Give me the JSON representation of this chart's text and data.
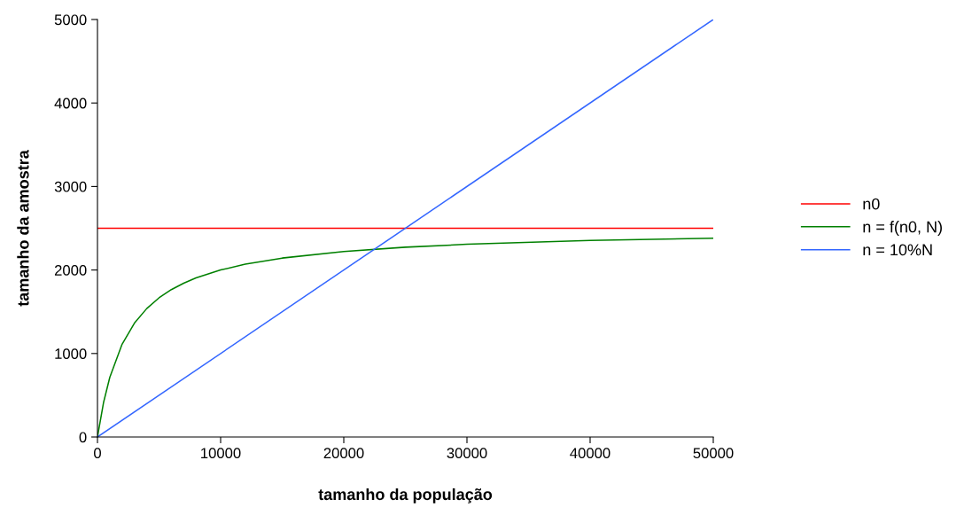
{
  "chart_data": {
    "type": "line",
    "xlabel": "tamanho da população",
    "ylabel": "tamanho da amostra",
    "xlim": [
      0,
      50000
    ],
    "ylim": [
      0,
      5000
    ],
    "xticks": [
      0,
      10000,
      20000,
      30000,
      40000,
      50000
    ],
    "yticks": [
      0,
      1000,
      2000,
      3000,
      4000,
      5000
    ],
    "grid": false,
    "legend": "right",
    "marker": "none",
    "line_style": "solid",
    "series": [
      {
        "name": "n0",
        "color": "#ff0000",
        "x": [
          0,
          50000
        ],
        "values": [
          2500,
          2500
        ]
      },
      {
        "name": "n = f(n0, N)",
        "color": "#008000",
        "x": [
          0,
          500,
          1000,
          2000,
          3000,
          4000,
          5000,
          6000,
          7000,
          8000,
          10000,
          12000,
          15000,
          20000,
          25000,
          30000,
          40000,
          50000
        ],
        "values": [
          0,
          417,
          714,
          1111,
          1364,
          1538,
          1667,
          1765,
          1842,
          1905,
          2000,
          2069,
          2143,
          2222,
          2273,
          2308,
          2353,
          2381
        ]
      },
      {
        "name": "n = 10%N",
        "color": "#3366ff",
        "x": [
          0,
          50000
        ],
        "values": [
          0,
          5000
        ]
      }
    ]
  }
}
